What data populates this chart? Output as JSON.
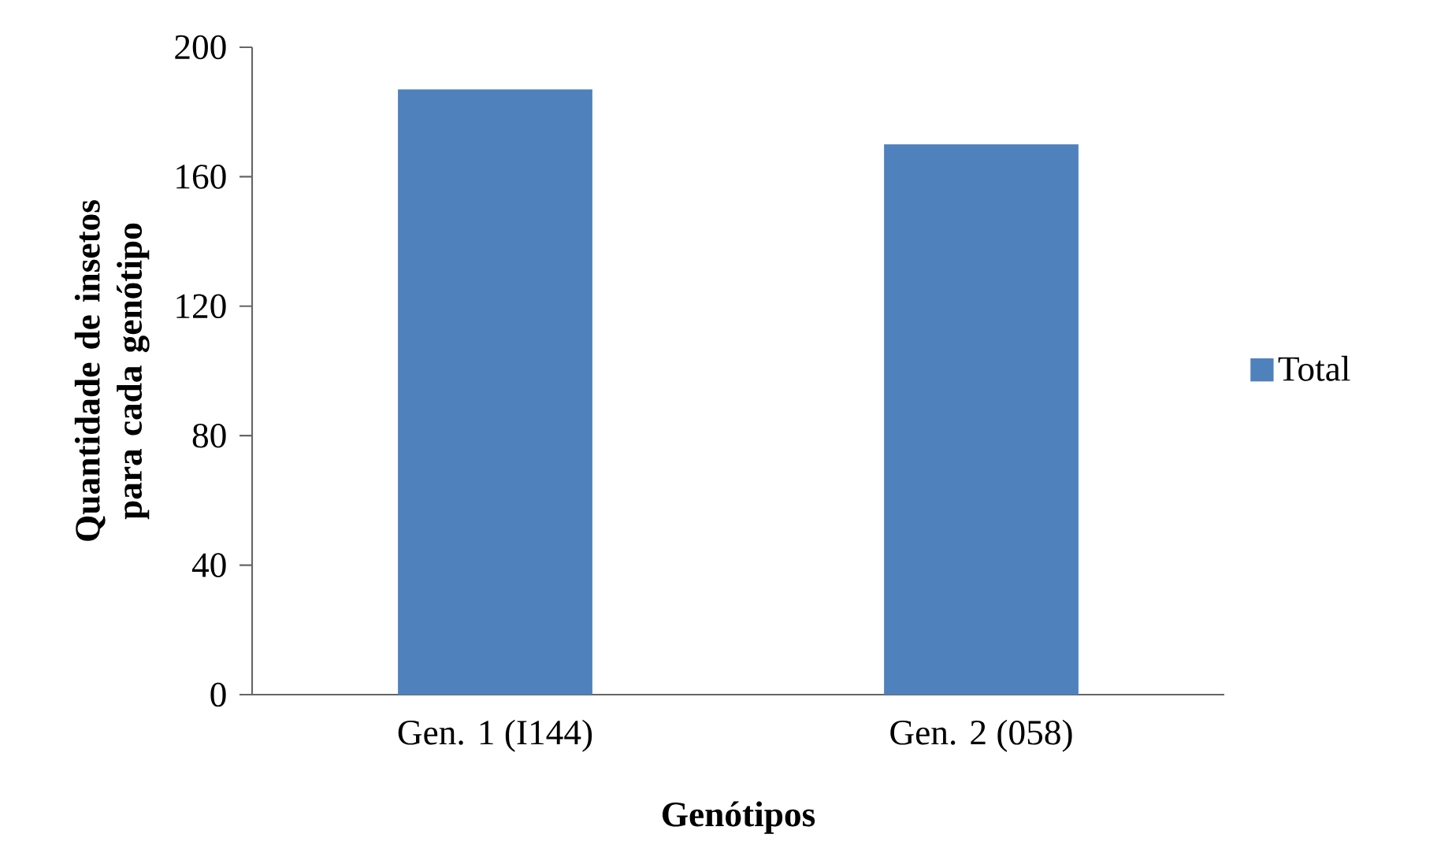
{
  "chart_data": {
    "type": "bar",
    "xlabel": "Genótipos",
    "ylabel": "Quantidade de insetos para cada genótipo",
    "categories": [
      "Gen. 1 (I144)",
      "Gen. 2 (058)"
    ],
    "series": [
      {
        "name": "Total",
        "color": "#4f81bd",
        "values": [
          187,
          170
        ]
      }
    ],
    "ylim": [
      0,
      200
    ],
    "yticks": [
      0,
      40,
      80,
      120,
      160,
      200
    ],
    "grid": false,
    "legend": "right"
  }
}
